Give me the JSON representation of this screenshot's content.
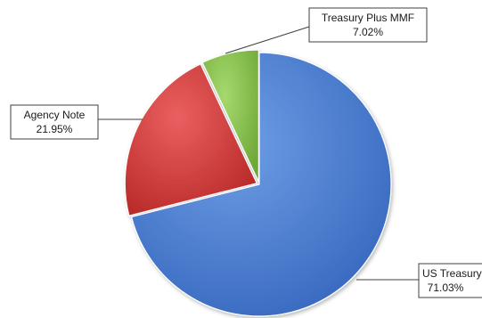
{
  "chart_data": {
    "type": "pie",
    "title": "",
    "legend": "none",
    "slices": [
      {
        "label": "US Treasury",
        "percent_label": "71.03%",
        "value": 71.03,
        "color": "#4a7fd4"
      },
      {
        "label": "Agency Note",
        "percent_label": "21.95%",
        "value": 21.95,
        "color": "#d83a3a"
      },
      {
        "label": "Treasury Plus MMF",
        "percent_label": "7.02%",
        "value": 7.02,
        "color": "#86c24a"
      }
    ]
  }
}
